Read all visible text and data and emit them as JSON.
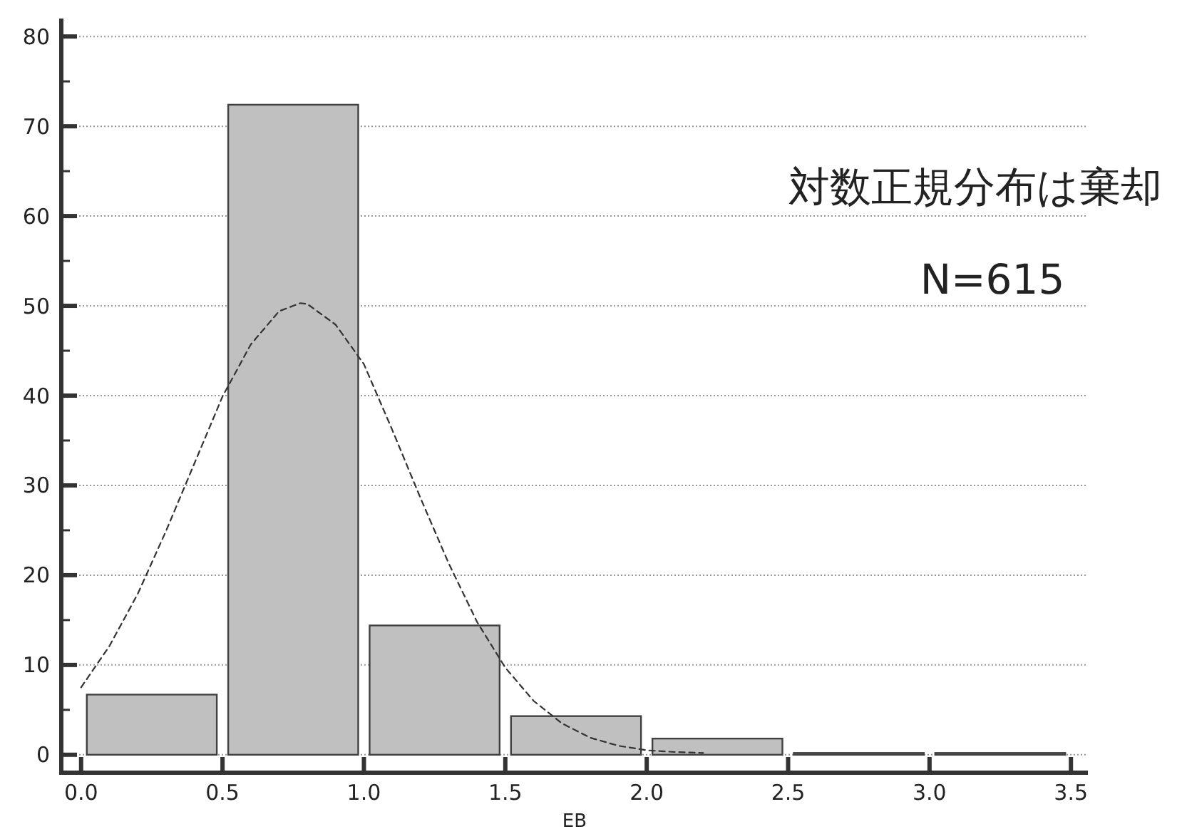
{
  "chart_data": {
    "type": "histogram",
    "xlabel": "EB",
    "annotations": [
      "対数正規分布は棄却",
      "N=615"
    ],
    "bins": [
      0,
      0.5,
      1,
      1.5,
      2,
      2.5,
      3,
      3.5
    ],
    "series": [
      {
        "color": "#c0c0c0",
        "values": [
          6.7,
          72.4,
          14.4,
          4.3,
          1.8,
          0.2,
          0.2
        ]
      },
      {
        "type": "line",
        "color": "#333333",
        "line_style": "dashed",
        "x": [
          0,
          0.1,
          0.2,
          0.3,
          0.4,
          0.5,
          0.6,
          0.7,
          0.775,
          0.8,
          0.9,
          1,
          1.1,
          1.2,
          1.3,
          1.4,
          1.5,
          1.6,
          1.7,
          1.8,
          1.9,
          2,
          2.1,
          2.2
        ],
        "values": [
          7.5,
          12.1,
          17.9,
          24.9,
          32.4,
          39.9,
          45.7,
          49.4,
          50.3,
          50.2,
          47.9,
          43.5,
          36.2,
          28.6,
          21.3,
          14.8,
          9.7,
          6,
          3.5,
          1.9,
          1,
          0.5,
          0.3,
          0.2
        ]
      }
    ],
    "xlim": [
      -0.07,
      3.56
    ],
    "xticks": [
      {
        "value": 0,
        "label": "0.0"
      },
      0.5,
      {
        "value": 1,
        "label": "1.0"
      },
      1.5,
      {
        "value": 2,
        "label": "2.0"
      },
      2.5,
      {
        "value": 3,
        "label": "3.0"
      },
      3.5
    ],
    "ylim": [
      -2,
      82
    ],
    "yticks": [
      0,
      {
        "value": 5,
        "label": null
      },
      10,
      {
        "value": 15,
        "label": null
      },
      20,
      {
        "value": 25,
        "label": null
      },
      30,
      {
        "value": 35,
        "label": null
      },
      40,
      {
        "value": 45,
        "label": null
      },
      50,
      {
        "value": 55,
        "label": null
      },
      60,
      {
        "value": 65,
        "label": null
      },
      70,
      {
        "value": 75,
        "label": null
      },
      80
    ],
    "grid": "y"
  }
}
